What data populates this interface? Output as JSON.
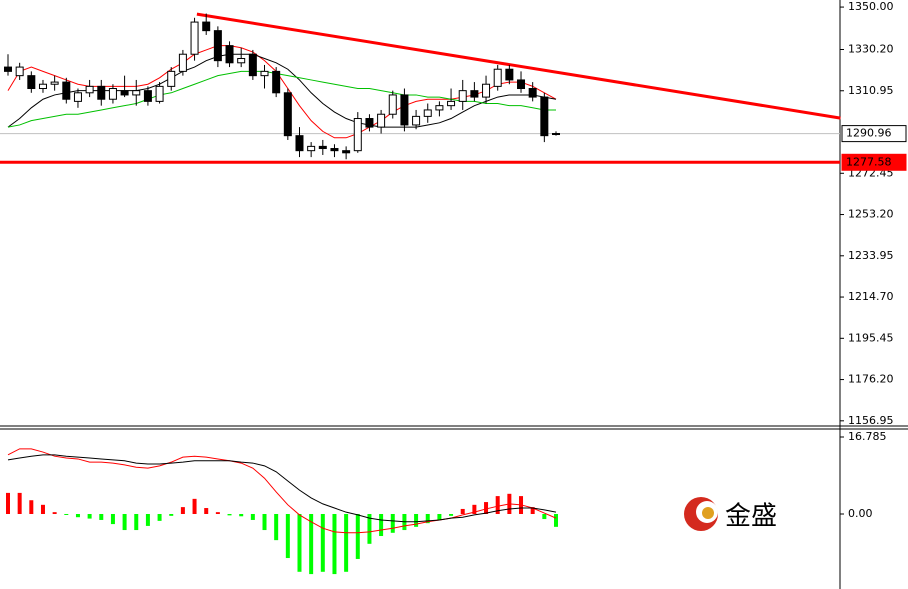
{
  "chart_data": [
    {
      "type": "candlestick",
      "open": [
        1322,
        1318,
        1318,
        1312,
        1314,
        1315,
        1306,
        1310,
        1313,
        1307,
        1311,
        1309,
        1311,
        1306,
        1313,
        1320,
        1328,
        1343,
        1339,
        1332,
        1324,
        1328,
        1318,
        1320,
        1310,
        1290,
        1283,
        1285,
        1284,
        1283,
        1283,
        1298,
        1294,
        1300,
        1309,
        1295,
        1299,
        1302,
        1304,
        1306,
        1311,
        1308,
        1313,
        1321,
        1316,
        1312,
        1308,
        1291
      ],
      "high": [
        1328,
        1324,
        1320,
        1316,
        1318,
        1317,
        1312,
        1316,
        1316,
        1314,
        1318,
        1316,
        1313,
        1315,
        1322,
        1330,
        1345,
        1347,
        1341,
        1334,
        1331,
        1330,
        1323,
        1322,
        1312,
        1294,
        1287,
        1288,
        1286,
        1285,
        1301,
        1300,
        1302,
        1311,
        1312,
        1302,
        1305,
        1306,
        1312,
        1316,
        1315,
        1318,
        1323,
        1323,
        1320,
        1315,
        1310,
        1292
      ],
      "low": [
        1318,
        1316,
        1310,
        1310,
        1311,
        1305,
        1303,
        1308,
        1304,
        1305,
        1308,
        1304,
        1304,
        1305,
        1311,
        1318,
        1325,
        1337,
        1322,
        1322,
        1322,
        1316,
        1312,
        1308,
        1288,
        1280,
        1280,
        1281,
        1280,
        1279,
        1282,
        1292,
        1291,
        1298,
        1292,
        1293,
        1296,
        1299,
        1302,
        1302,
        1306,
        1305,
        1311,
        1314,
        1310,
        1306,
        1287,
        1290
      ],
      "close": [
        1320,
        1322,
        1312,
        1314,
        1315,
        1307,
        1310,
        1313,
        1307,
        1312,
        1309,
        1311,
        1306,
        1313,
        1320,
        1328,
        1343,
        1339,
        1325,
        1324,
        1326,
        1318,
        1320,
        1310,
        1290,
        1283,
        1285,
        1284,
        1283,
        1282,
        1298,
        1294,
        1300,
        1309,
        1295,
        1299,
        1302,
        1304,
        1306,
        1311,
        1308,
        1314,
        1321,
        1316,
        1312,
        1308,
        1290,
        1290.96
      ],
      "series": [
        {
          "color": "#ff0000",
          "values": [
            1311,
            1320,
            1322,
            1320,
            1318,
            1316,
            1314,
            1313,
            1313,
            1313,
            1313,
            1313,
            1314,
            1317,
            1321,
            1324,
            1328,
            1330,
            1332,
            1332,
            1331,
            1329,
            1325,
            1320,
            1312,
            1304,
            1297,
            1292,
            1289,
            1289,
            1291,
            1294,
            1297,
            1301,
            1304,
            1306,
            1307,
            1307,
            1307,
            1308,
            1309,
            1311,
            1314,
            1315,
            1315,
            1313,
            1310,
            1307
          ]
        },
        {
          "color": "#000000",
          "values": [
            1294,
            1298,
            1303,
            1307,
            1309,
            1310,
            1311,
            1311,
            1311,
            1311,
            1311,
            1311,
            1312,
            1314,
            1317,
            1320,
            1322,
            1325,
            1327,
            1328,
            1328,
            1328,
            1326,
            1324,
            1321,
            1316,
            1310,
            1305,
            1301,
            1298,
            1296,
            1295,
            1294,
            1294,
            1294,
            1294,
            1295,
            1296,
            1298,
            1301,
            1304,
            1306,
            1308,
            1309,
            1309,
            1309,
            1308,
            1307
          ]
        },
        {
          "color": "#00c000",
          "values": [
            1294,
            1295,
            1297,
            1298,
            1299,
            1300,
            1300,
            1301,
            1302,
            1303,
            1304,
            1305,
            1307,
            1309,
            1310,
            1312,
            1314,
            1316,
            1318,
            1319,
            1320,
            1320,
            1320,
            1319,
            1318,
            1317,
            1316,
            1315,
            1314,
            1313,
            1312,
            1312,
            1311,
            1310,
            1309,
            1309,
            1308,
            1308,
            1307,
            1306,
            1306,
            1305,
            1305,
            1304,
            1304,
            1303,
            1302,
            1302
          ]
        }
      ],
      "trendline": {
        "x": [
          16.2,
          71.4
        ],
        "y": [
          1346.7,
          1298.2
        ],
        "color": "#ff0000"
      },
      "hlines": [
        {
          "value": 1290.96,
          "color": "#c0c0c0"
        },
        {
          "value": 1277.58,
          "color": "#ff0000"
        }
      ],
      "ylim": [
        1155,
        1353.3
      ],
      "yticks": [
        {
          "value": 1350,
          "label": "1350.00"
        },
        {
          "value": 1330.2,
          "label": "1330.20"
        },
        1310.95,
        1272.45,
        {
          "value": 1253.2,
          "label": "1253.20"
        },
        1233.95,
        {
          "value": 1214.7,
          "label": "1214.70"
        },
        1195.45,
        {
          "value": 1176.2,
          "label": "1176.20"
        },
        1156.95
      ]
    },
    {
      "type": "macd",
      "values": [
        4.6,
        4.6,
        3.0,
        2.0,
        0.4,
        -0.2,
        -0.7,
        -1.0,
        -1.3,
        -2.2,
        -3.5,
        -3.5,
        -2.6,
        -1.5,
        -0.4,
        1.5,
        3.3,
        1.3,
        0.4,
        -0.3,
        -0.5,
        -1.3,
        -3.5,
        -5.7,
        -9.6,
        -12.6,
        -13.1,
        -12.6,
        -13.1,
        -12.6,
        -9.8,
        -6.5,
        -4.8,
        -4.1,
        -3.5,
        -2.8,
        -2.0,
        -1.3,
        -0.4,
        1.1,
        2.0,
        2.6,
        3.9,
        4.4,
        3.9,
        1.5,
        -1.1,
        -2.8
      ],
      "positive_color": "#ff0000",
      "negative_color": "#00ff00",
      "series": [
        {
          "color": "#ff0000",
          "values": [
            12.9,
            14.2,
            14.2,
            13.5,
            12.6,
            12.2,
            12.0,
            11.3,
            11.3,
            11.1,
            10.7,
            10.2,
            10.0,
            10.5,
            11.3,
            12.4,
            12.6,
            12.4,
            12.0,
            11.6,
            11.1,
            10.0,
            7.8,
            4.8,
            2.0,
            -0.2,
            -1.7,
            -3.1,
            -3.9,
            -4.1,
            -4.1,
            -3.9,
            -3.5,
            -3.1,
            -2.6,
            -2.2,
            -1.7,
            -1.3,
            -0.9,
            -0.2,
            0.4,
            1.1,
            1.7,
            2.2,
            2.0,
            1.3,
            0.2,
            -0.9
          ]
        },
        {
          "color": "#000000",
          "values": [
            11.8,
            12.2,
            12.6,
            12.9,
            12.9,
            12.6,
            12.4,
            12.2,
            12.0,
            11.8,
            11.6,
            11.1,
            10.9,
            10.9,
            11.1,
            11.3,
            11.6,
            11.6,
            11.6,
            11.6,
            11.3,
            11.1,
            10.5,
            9.2,
            7.2,
            5.2,
            3.5,
            2.2,
            1.3,
            0.4,
            -0.2,
            -0.9,
            -1.3,
            -1.5,
            -1.7,
            -1.7,
            -1.5,
            -1.3,
            -0.9,
            -0.7,
            -0.2,
            0.2,
            0.7,
            1.1,
            1.3,
            1.3,
            0.9,
            0.4
          ]
        }
      ],
      "ylim": [
        -16.35,
        18.31
      ],
      "yticks": [
        16.785,
        {
          "value": 0,
          "label": "0.00"
        }
      ]
    }
  ],
  "watermark": "金盛"
}
